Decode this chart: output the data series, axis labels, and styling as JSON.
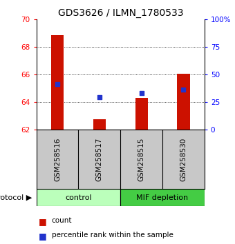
{
  "title": "GDS3626 / ILMN_1780533",
  "samples": [
    "GSM258516",
    "GSM258517",
    "GSM258515",
    "GSM258530"
  ],
  "red_bar_tops": [
    68.85,
    62.73,
    64.3,
    66.05
  ],
  "red_bar_base": 62.0,
  "blue_y": [
    65.3,
    64.32,
    64.65,
    64.9
  ],
  "ylim": [
    62,
    70
  ],
  "yticks_left": [
    62,
    64,
    66,
    68,
    70
  ],
  "yticks_right": [
    0,
    25,
    50,
    75,
    100
  ],
  "yright_labels": [
    "0",
    "25",
    "50",
    "75",
    "100%"
  ],
  "groups": [
    {
      "label": "control",
      "indices": [
        0,
        1
      ],
      "color": "#bbffbb"
    },
    {
      "label": "MIF depletion",
      "indices": [
        2,
        3
      ],
      "color": "#44cc44"
    }
  ],
  "bar_color": "#cc1100",
  "blue_color": "#2233cc",
  "bg_color": "#ffffff",
  "sample_box_color": "#c8c8c8",
  "title_fontsize": 10,
  "tick_fontsize": 7.5,
  "label_fontsize": 8,
  "legend_fontsize": 7.5,
  "bar_width": 0.3
}
